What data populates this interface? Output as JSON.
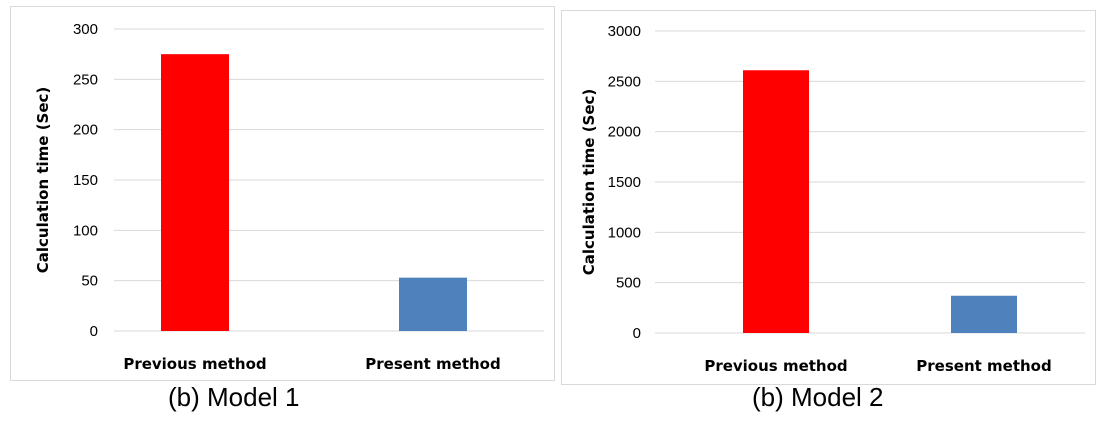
{
  "chart_data": [
    {
      "type": "bar",
      "title": "",
      "caption": "(b) Model 1",
      "categories": [
        "Previous method",
        "Present method"
      ],
      "values": [
        275,
        53
      ],
      "colors": [
        "#ff0000",
        "#4f81bd"
      ],
      "xlabel": "",
      "ylabel": "Calculation time (Sec)",
      "ylim": [
        0,
        300
      ],
      "yticks": [
        0,
        50,
        100,
        150,
        200,
        250,
        300
      ],
      "grid": true,
      "legend": "none"
    },
    {
      "type": "bar",
      "title": "",
      "caption": "(b) Model 2",
      "categories": [
        "Previous method",
        "Present method"
      ],
      "values": [
        2610,
        370
      ],
      "colors": [
        "#ff0000",
        "#4f81bd"
      ],
      "xlabel": "",
      "ylabel": "Calculation time (Sec)",
      "ylim": [
        0,
        3000
      ],
      "yticks": [
        0,
        500,
        1000,
        1500,
        2000,
        2500,
        3000
      ],
      "grid": true,
      "legend": "none"
    }
  ]
}
